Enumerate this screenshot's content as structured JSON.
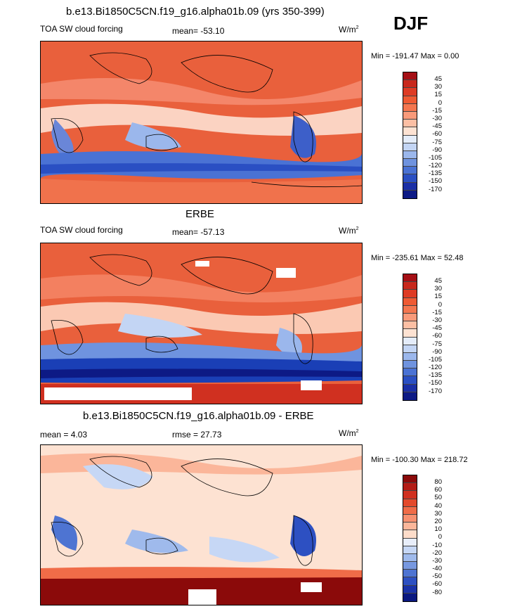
{
  "header": {
    "model_title": "b.e13.Bi1850C5CN.f19_g16.alpha01b.09 (yrs 350-399)",
    "season": "DJF"
  },
  "panels": [
    {
      "title": "",
      "left_label": "TOA SW cloud forcing",
      "center_label": "mean= -53.10",
      "units": "W/m",
      "units_sup": "2",
      "minmax": "Min = -191.47 Max =   0.00",
      "colorbar_labels": [
        "45",
        "30",
        "15",
        "0",
        "-15",
        "-30",
        "-45",
        "-60",
        "-75",
        "-90",
        "-105",
        "-120",
        "-135",
        "-150",
        "-170"
      ],
      "colorbar_colors": [
        "#a50f15",
        "#c8281c",
        "#de3b24",
        "#ef5a33",
        "#f4764f",
        "#f99a7a",
        "#fcbfa4",
        "#fde2d2",
        "#e4ecf9",
        "#c3d5f4",
        "#9bb7ec",
        "#6f93df",
        "#4a72d4",
        "#2a4fc3",
        "#1a2fa6",
        "#0d1a85"
      ]
    },
    {
      "title": "ERBE",
      "left_label": "TOA SW cloud forcing",
      "center_label": "mean= -57.13",
      "units": "W/m",
      "units_sup": "2",
      "minmax": "Min = -235.61 Max =  52.48",
      "colorbar_labels": [
        "45",
        "30",
        "15",
        "0",
        "-15",
        "-30",
        "-45",
        "-60",
        "-75",
        "-90",
        "-105",
        "-120",
        "-135",
        "-150",
        "-170"
      ],
      "colorbar_colors": [
        "#a50f15",
        "#c8281c",
        "#de3b24",
        "#ef5a33",
        "#f4764f",
        "#f99a7a",
        "#fcbfa4",
        "#fde2d2",
        "#e4ecf9",
        "#c3d5f4",
        "#9bb7ec",
        "#6f93df",
        "#4a72d4",
        "#2a4fc3",
        "#1a2fa6",
        "#0d1a85"
      ]
    },
    {
      "title": "b.e13.Bi1850C5CN.f19_g16.alpha01b.09 - ERBE",
      "left_label": "mean =   4.03",
      "center_label": "rmse =  27.73",
      "units": "W/m",
      "units_sup": "2",
      "minmax": "Min = -100.30 Max = 218.72",
      "colorbar_labels": [
        "80",
        "60",
        "50",
        "40",
        "30",
        "20",
        "10",
        "0",
        "-10",
        "-20",
        "-30",
        "-40",
        "-50",
        "-60",
        "-80"
      ],
      "colorbar_colors": [
        "#8b0a0a",
        "#b31c16",
        "#d03020",
        "#e34a2c",
        "#f06c48",
        "#f79070",
        "#fbb69a",
        "#fddcc9",
        "#e8eefa",
        "#c6d7f5",
        "#9fbaec",
        "#7798e0",
        "#4e74d2",
        "#2d50c2",
        "#1a32a8",
        "#0a1880"
      ]
    }
  ]
}
